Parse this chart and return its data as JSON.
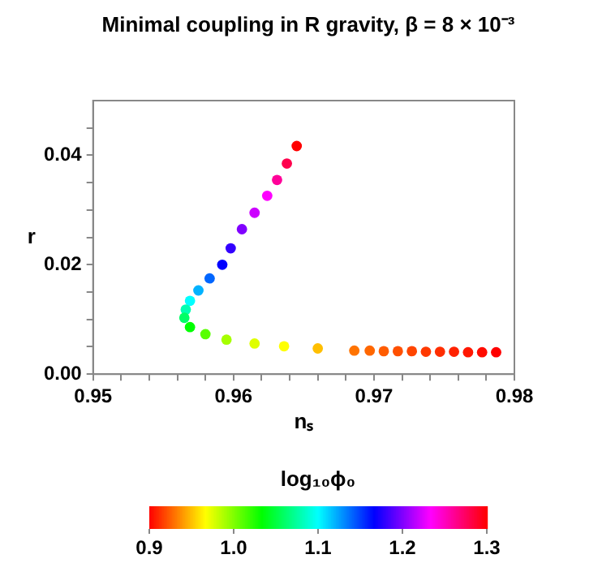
{
  "chart_data": {
    "type": "scatter",
    "title": "Minimal coupling in R gravity, β = 8 × 10⁻³",
    "xlabel": "nₛ",
    "ylabel": "r",
    "clabel": "log₁₀ϕ₀",
    "xlim": [
      0.95,
      0.98
    ],
    "ylim": [
      0,
      0.05
    ],
    "xticks": [
      0.95,
      {
        "value": 0.952,
        "label": null
      },
      {
        "value": 0.954,
        "label": null
      },
      {
        "value": 0.956,
        "label": null
      },
      {
        "value": 0.958,
        "label": null
      },
      0.96,
      {
        "value": 0.962,
        "label": null
      },
      {
        "value": 0.964,
        "label": null
      },
      {
        "value": 0.966,
        "label": null
      },
      {
        "value": 0.968,
        "label": null
      },
      0.97,
      {
        "value": 0.972,
        "label": null
      },
      {
        "value": 0.974,
        "label": null
      },
      {
        "value": 0.976,
        "label": null
      },
      {
        "value": 0.978,
        "label": null
      },
      0.98
    ],
    "yticks": [
      {
        "value": 0,
        "label": "0.00"
      },
      {
        "value": 0.005,
        "label": null
      },
      {
        "value": 0.01,
        "label": null
      },
      {
        "value": 0.015,
        "label": null
      },
      {
        "value": 0.02,
        "label": "0.02"
      },
      {
        "value": 0.025,
        "label": null
      },
      {
        "value": 0.03,
        "label": null
      },
      {
        "value": 0.035,
        "label": null
      },
      {
        "value": 0.04,
        "label": "0.04"
      },
      {
        "value": 0.045,
        "label": null
      }
    ],
    "clim": [
      0.9,
      1.3
    ],
    "cticks": [
      0.9,
      {
        "value": 1,
        "label": "1.0"
      },
      1.1,
      1.2,
      1.3
    ],
    "grid": false,
    "legend": false,
    "marker": "circle",
    "x": [
      0.9645,
      0.9638,
      0.9631,
      0.9624,
      0.9615,
      0.9606,
      0.9598,
      0.9592,
      0.9583,
      0.9575,
      0.9569,
      0.9566,
      0.9565,
      0.9569,
      0.958,
      0.9595,
      0.9615,
      0.9636,
      0.966,
      0.9686,
      0.9697,
      0.9707,
      0.9717,
      0.9727,
      0.9737,
      0.9747,
      0.9757,
      0.9767,
      0.9777,
      0.9787
    ],
    "values": [
      0.0417,
      0.0385,
      0.0355,
      0.0326,
      0.0295,
      0.0265,
      0.023,
      0.02,
      0.0175,
      0.0153,
      0.0134,
      0.0118,
      0.0103,
      0.0086,
      0.0073,
      0.0063,
      0.0056,
      0.0051,
      0.0047,
      0.0043,
      0.0043,
      0.0042,
      0.0042,
      0.0042,
      0.0041,
      0.0041,
      0.0041,
      0.004,
      0.004,
      0.004
    ],
    "cvalues": [
      1.3,
      1.28,
      1.26,
      1.233,
      1.22,
      1.2,
      1.18,
      1.167,
      1.14,
      1.12,
      1.1,
      1.08,
      1.06,
      1.033,
      1.01,
      0.99,
      0.975,
      0.967,
      0.95,
      0.93,
      0.927,
      0.924,
      0.921,
      0.918,
      0.915,
      0.912,
      0.909,
      0.906,
      0.903,
      0.9
    ]
  }
}
